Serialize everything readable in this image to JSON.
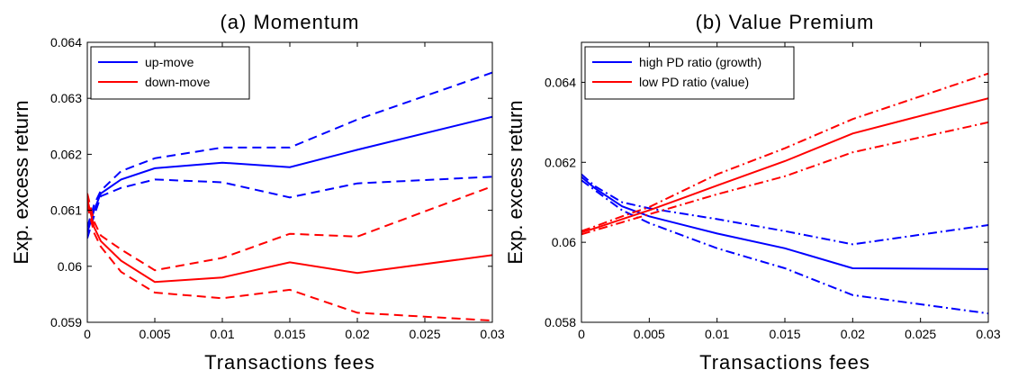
{
  "chart_data": [
    {
      "type": "line",
      "title": "(a) Momentum",
      "xlabel": "Transactions fees",
      "ylabel": "Exp. excess return",
      "xlim": [
        0,
        0.03
      ],
      "ylim": [
        0.059,
        0.064
      ],
      "xticks": [
        "0",
        "0.005",
        "0.01",
        "0.015",
        "0.02",
        "0.025",
        "0.03"
      ],
      "yticks": [
        "0.059",
        "0.06",
        "0.061",
        "0.062",
        "0.063",
        "0.064"
      ],
      "grid": false,
      "legend_position": "top-left",
      "series": [
        {
          "name": "up-move",
          "color": "#0000ff",
          "style": "solid",
          "legend": true,
          "x": [
            0,
            0.0005,
            0.001,
            0.0025,
            0.005,
            0.01,
            0.015,
            0.02,
            0.03
          ],
          "y": [
            0.0606,
            0.061,
            0.0613,
            0.06155,
            0.06175,
            0.06185,
            0.06177,
            0.06208,
            0.06267
          ]
        },
        {
          "name": "up-move upper band",
          "color": "#0000ff",
          "style": "dashed",
          "legend": false,
          "x": [
            0,
            0.0005,
            0.001,
            0.0025,
            0.005,
            0.01,
            0.015,
            0.02,
            0.03
          ],
          "y": [
            0.0607,
            0.0611,
            0.06135,
            0.0617,
            0.06193,
            0.06212,
            0.06212,
            0.06262,
            0.06346
          ]
        },
        {
          "name": "up-move lower band",
          "color": "#0000ff",
          "style": "dashed",
          "legend": false,
          "x": [
            0,
            0.0005,
            0.001,
            0.0025,
            0.005,
            0.01,
            0.015,
            0.02,
            0.03
          ],
          "y": [
            0.0605,
            0.0609,
            0.06125,
            0.0614,
            0.06155,
            0.0615,
            0.06123,
            0.06148,
            0.0616
          ]
        },
        {
          "name": "down-move",
          "color": "#ff0000",
          "style": "solid",
          "legend": true,
          "x": [
            0,
            0.0005,
            0.001,
            0.0025,
            0.005,
            0.01,
            0.015,
            0.02,
            0.03
          ],
          "y": [
            0.0612,
            0.0607,
            0.06045,
            0.0601,
            0.05972,
            0.0598,
            0.06007,
            0.05988,
            0.0602
          ]
        },
        {
          "name": "down-move upper band",
          "color": "#ff0000",
          "style": "dashed",
          "legend": false,
          "x": [
            0,
            0.0005,
            0.001,
            0.0025,
            0.005,
            0.01,
            0.015,
            0.02,
            0.03
          ],
          "y": [
            0.0613,
            0.0608,
            0.06055,
            0.0603,
            0.05993,
            0.06015,
            0.06058,
            0.06053,
            0.06143
          ]
        },
        {
          "name": "down-move lower band",
          "color": "#ff0000",
          "style": "dashed",
          "legend": false,
          "x": [
            0,
            0.0005,
            0.001,
            0.0025,
            0.005,
            0.01,
            0.015,
            0.02,
            0.03
          ],
          "y": [
            0.0611,
            0.0606,
            0.06035,
            0.0599,
            0.05953,
            0.05943,
            0.05958,
            0.05917,
            0.05903
          ]
        }
      ]
    },
    {
      "type": "line",
      "title": "(b) Value Premium",
      "xlabel": "Transactions fees",
      "ylabel": "Exp. excess return",
      "xlim": [
        0,
        0.03
      ],
      "ylim": [
        0.058,
        0.065
      ],
      "xticks": [
        "0",
        "0.005",
        "0.01",
        "0.015",
        "0.02",
        "0.025",
        "0.03"
      ],
      "yticks": [
        "0.058",
        "0.06",
        "0.062",
        "0.064"
      ],
      "ytick_values": [
        0.058,
        0.06,
        0.062,
        0.064
      ],
      "grid": false,
      "legend_position": "top-left",
      "series": [
        {
          "name": "high PD ratio (growth)",
          "color": "#0000ff",
          "style": "solid",
          "legend": true,
          "x": [
            0,
            0.001,
            0.003,
            0.005,
            0.01,
            0.015,
            0.02,
            0.03
          ],
          "y": [
            0.06163,
            0.06135,
            0.0609,
            0.06065,
            0.06022,
            0.05985,
            0.05935,
            0.05933
          ]
        },
        {
          "name": "high PD upper band",
          "color": "#0000ff",
          "style": "dashdot",
          "legend": false,
          "x": [
            0,
            0.001,
            0.003,
            0.005,
            0.01,
            0.015,
            0.02,
            0.03
          ],
          "y": [
            0.0617,
            0.0614,
            0.061,
            0.06085,
            0.06058,
            0.06028,
            0.05995,
            0.06043
          ]
        },
        {
          "name": "high PD lower band",
          "color": "#0000ff",
          "style": "dashdot",
          "legend": false,
          "x": [
            0,
            0.001,
            0.003,
            0.005,
            0.01,
            0.015,
            0.02,
            0.03
          ],
          "y": [
            0.06155,
            0.0613,
            0.0608,
            0.06048,
            0.05985,
            0.05935,
            0.05868,
            0.05822
          ]
        },
        {
          "name": "low PD ratio (value)",
          "color": "#ff0000",
          "style": "solid",
          "legend": true,
          "x": [
            0,
            0.001,
            0.003,
            0.005,
            0.01,
            0.015,
            0.02,
            0.03
          ],
          "y": [
            0.06025,
            0.06035,
            0.06058,
            0.0608,
            0.06142,
            0.06203,
            0.06272,
            0.0636
          ]
        },
        {
          "name": "low PD upper band",
          "color": "#ff0000",
          "style": "dashdot",
          "legend": false,
          "x": [
            0,
            0.001,
            0.003,
            0.005,
            0.01,
            0.015,
            0.02,
            0.03
          ],
          "y": [
            0.06028,
            0.0604,
            0.06065,
            0.06088,
            0.0617,
            0.06235,
            0.06308,
            0.06422
          ]
        },
        {
          "name": "low PD lower band",
          "color": "#ff0000",
          "style": "dashdot",
          "legend": false,
          "x": [
            0,
            0.001,
            0.003,
            0.005,
            0.01,
            0.015,
            0.02,
            0.03
          ],
          "y": [
            0.0602,
            0.0603,
            0.0605,
            0.0607,
            0.0612,
            0.06165,
            0.06225,
            0.063
          ]
        }
      ]
    }
  ]
}
